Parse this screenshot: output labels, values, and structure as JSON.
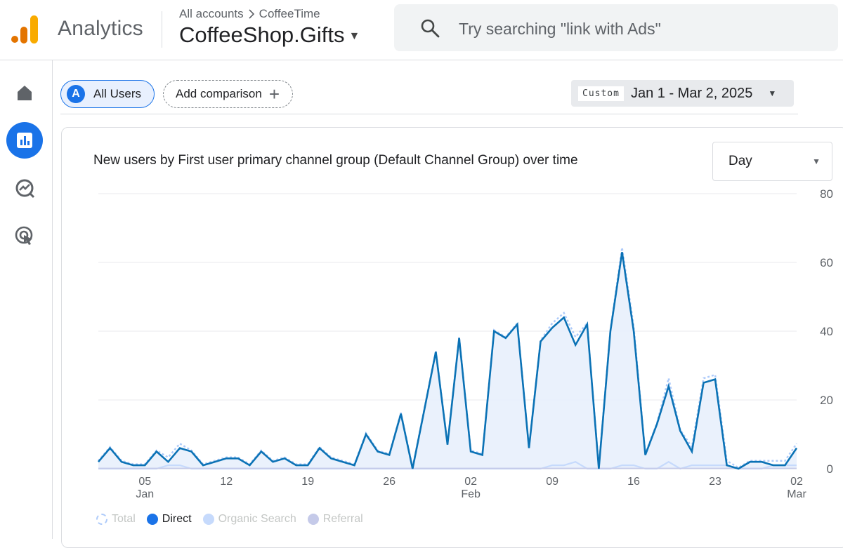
{
  "app": {
    "brand": "Analytics",
    "breadcrumb": [
      "All accounts",
      "CoffeeTime"
    ],
    "property": "CoffeeShop.Gifts",
    "search_placeholder": "Try searching \"link with Ads\""
  },
  "rail": {
    "items": [
      "home-icon",
      "reports-icon",
      "explore-icon",
      "advertising-icon"
    ],
    "active": "reports-icon"
  },
  "comparison": {
    "segment_badge": "A",
    "segment_label": "All Users",
    "add_label": "Add comparison"
  },
  "date_range": {
    "tag": "Custom",
    "value": "Jan 1 - Mar 2, 2025"
  },
  "card": {
    "title": "New users by First user primary channel group (Default Channel Group) over time",
    "granularity": "Day"
  },
  "legend": [
    {
      "name": "Total",
      "color": "#aecbfa",
      "style": "dashed",
      "muted": true
    },
    {
      "name": "Direct",
      "color": "#1a73e8",
      "muted": false
    },
    {
      "name": "Organic Search",
      "color": "#c6dafc",
      "muted": true
    },
    {
      "name": "Referral",
      "color": "#c5cae9",
      "muted": true
    }
  ],
  "colors": {
    "accent": "#1a73e8",
    "direct_line": "#0b72b5",
    "direct_fill": "#e8effc",
    "grid": "#e8eaed"
  },
  "chart_data": {
    "type": "line",
    "title": "New users by First user primary channel group (Default Channel Group) over time",
    "xlabel": "",
    "ylabel": "",
    "ylim": [
      0,
      80
    ],
    "yticks": [
      0,
      20,
      40,
      60,
      80
    ],
    "x_start": "2025-01-01",
    "x_tick_labels": [
      {
        "day": 5,
        "label": "05",
        "sub": "Jan"
      },
      {
        "day": 12,
        "label": "12",
        "sub": ""
      },
      {
        "day": 19,
        "label": "19",
        "sub": ""
      },
      {
        "day": 26,
        "label": "26",
        "sub": ""
      },
      {
        "day": 33,
        "label": "02",
        "sub": "Feb"
      },
      {
        "day": 40,
        "label": "09",
        "sub": ""
      },
      {
        "day": 47,
        "label": "16",
        "sub": ""
      },
      {
        "day": 54,
        "label": "23",
        "sub": ""
      },
      {
        "day": 61,
        "label": "02",
        "sub": "Mar"
      }
    ],
    "grid": true,
    "legend_position": "bottom-left",
    "series": [
      {
        "name": "Direct",
        "values": [
          2,
          6,
          2,
          1,
          1,
          5,
          2,
          6,
          5,
          1,
          2,
          3,
          3,
          1,
          5,
          2,
          3,
          1,
          1,
          6,
          3,
          2,
          1,
          10,
          5,
          4,
          16,
          0,
          17,
          34,
          7,
          38,
          5,
          4,
          40,
          38,
          42,
          6,
          37,
          41,
          44,
          36,
          42,
          0,
          40,
          63,
          40,
          4,
          13,
          24,
          11,
          5,
          25,
          26,
          1,
          0,
          2,
          2,
          1,
          1,
          6
        ]
      },
      {
        "name": "Organic Search",
        "values": [
          0,
          0,
          0,
          0,
          0,
          0,
          1,
          1,
          0,
          0,
          0,
          0,
          0,
          0,
          0,
          0,
          0,
          0,
          0,
          0,
          0,
          0,
          0,
          0,
          0,
          0,
          0,
          0,
          0,
          0,
          0,
          0,
          0,
          0,
          0,
          0,
          0,
          0,
          0,
          1,
          1,
          2,
          0,
          0,
          0,
          1,
          1,
          0,
          0,
          2,
          0,
          1,
          1,
          1,
          1,
          0,
          0,
          0,
          1,
          1,
          1
        ]
      },
      {
        "name": "Referral",
        "values": [
          0,
          0,
          0,
          0,
          0,
          0,
          0,
          0,
          0,
          0,
          0,
          0,
          0,
          0,
          0,
          0,
          0,
          0,
          0,
          0,
          0,
          0,
          0,
          0,
          0,
          0,
          0,
          0,
          0,
          0,
          0,
          0,
          0,
          0,
          0,
          0,
          0,
          0,
          0,
          0,
          0,
          0,
          0,
          0,
          0,
          0,
          0,
          0,
          0,
          0,
          0,
          0,
          0,
          0,
          0,
          0,
          0,
          0,
          0,
          0,
          0
        ]
      }
    ]
  }
}
